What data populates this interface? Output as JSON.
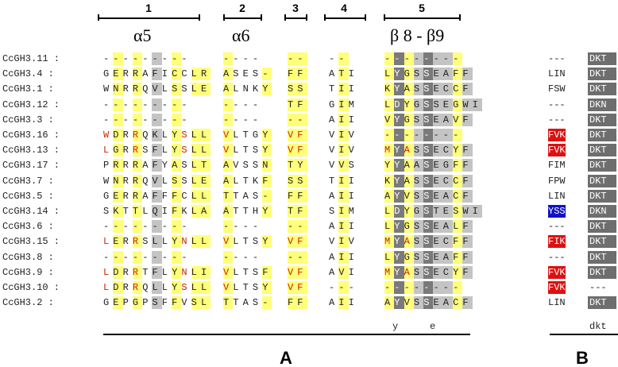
{
  "regions": [
    {
      "number": "1",
      "title": "α5"
    },
    {
      "number": "2",
      "title": "α6"
    },
    {
      "number": "3",
      "title": ""
    },
    {
      "number": "4",
      "title": ""
    },
    {
      "number": "5",
      "title": "β 8 - β9"
    }
  ],
  "panels": {
    "a": "A",
    "b": "B"
  },
  "consensus": [
    "y",
    "e",
    "dkt"
  ],
  "colors": {
    "yellow": "#ffff7a",
    "light_gray": "#c4c4c4",
    "dark_gray": "#7a7a7a",
    "red_text": "#cc2200",
    "red_box": "#dd1111",
    "blue_box": "#1010cc"
  },
  "rows": [
    {
      "name": "CcGH3.11 :",
      "s1": "---------",
      "s2": "----",
      "s3": "--",
      "s4": "--",
      "s5": "--------",
      "b": "---",
      "bstyle": "plain",
      "dkt": "DKT"
    },
    {
      "name": "CcGH3.4 :",
      "s1": "GERRAFICCLR",
      "s2": "ASES-",
      "s3": "FF",
      "s4": "ATI",
      "s5": "LYGSSEAFF",
      "b": "LIN",
      "bstyle": "plain",
      "dkt": "DKT"
    },
    {
      "name": "CcGH3.1 :",
      "s1": "WNRRQVLSSLE",
      "s2": "ALNKY",
      "s3": "SS",
      "s4": "TII",
      "s5": "KYASSECCF",
      "b": "FSW",
      "bstyle": "plain",
      "dkt": "DKT"
    },
    {
      "name": "CcGH3.12 :",
      "s1": "---------",
      "s2": "----",
      "s3": "TF",
      "s4": "GIM",
      "s5": "LDYGSSEGWI",
      "b": "---",
      "bstyle": "plain",
      "dkt": "DKN"
    },
    {
      "name": "CcGH3.3 :",
      "s1": "---------",
      "s2": "----",
      "s3": "--",
      "s4": "AII",
      "s5": "VYGSSEAVF",
      "b": "---",
      "bstyle": "plain",
      "dkt": "DKT"
    },
    {
      "name": "CcGH3.16 :",
      "s1": "WDRRQKLYSLL",
      "s2": "VLTGY",
      "s3": "VF",
      "s4": "VIV",
      "s5": "--------",
      "b": "FVK",
      "bstyle": "red",
      "dkt": "DKT"
    },
    {
      "name": "CcGH3.13 :",
      "s1": "LGRRSFLYSLL",
      "s2": "VLTSY",
      "s3": "VF",
      "s4": "VIV",
      "s5": "MYASSECYF",
      "b": "FVK",
      "bstyle": "red",
      "dkt": "DKT"
    },
    {
      "name": "CcGH3.17 :",
      "s1": "PRRRAFYASLT",
      "s2": "AVSSN",
      "s3": "TY",
      "s4": "VVS",
      "s5": "YYAASEGFF",
      "b": "FIM",
      "bstyle": "plain",
      "dkt": "DKT"
    },
    {
      "name": "CcGH3.7 :",
      "s1": "WNRRQVLSSLE",
      "s2": "ALTKF",
      "s3": "SS",
      "s4": "TII",
      "s5": "KYASSECCF",
      "b": "FPW",
      "bstyle": "plain",
      "dkt": "DKT"
    },
    {
      "name": "CcGH3.5 :",
      "s1": "GERRAFFFCLL",
      "s2": "TTAS-",
      "s3": "FF",
      "s4": "AII",
      "s5": "AYVSSEACF",
      "b": "LIN",
      "bstyle": "plain",
      "dkt": "DKT"
    },
    {
      "name": "CcGH3.14 :",
      "s1": "SKTTLQIFKLA",
      "s2": "ATTHY",
      "s3": "TF",
      "s4": "SIM",
      "s5": "LDYGSTESWI",
      "b": "YSS",
      "bstyle": "blue",
      "dkt": "DKN"
    },
    {
      "name": "CcGH3.6 :",
      "s1": "---------",
      "s2": "----",
      "s3": "--",
      "s4": "AII",
      "s5": "LYGSSEALF",
      "b": "---",
      "bstyle": "plain",
      "dkt": "DKT"
    },
    {
      "name": "CcGH3.15 :",
      "s1": "LERRSLLYNLL",
      "s2": "VLTSY",
      "s3": "VF",
      "s4": "VIV",
      "s5": "MYASSECFF",
      "b": "FIK",
      "bstyle": "red",
      "dkt": "DKT"
    },
    {
      "name": "CcGH3.8 :",
      "s1": "---------",
      "s2": "----",
      "s3": "--",
      "s4": "AII",
      "s5": "LYGSSEAFF",
      "b": "---",
      "bstyle": "plain",
      "dkt": "DKT"
    },
    {
      "name": "CcGH3.9 :",
      "s1": "LDRRTFLYNLI",
      "s2": "VLTSF",
      "s3": "VF",
      "s4": "AVI",
      "s5": "MYASSECYF",
      "b": "FVK",
      "bstyle": "red",
      "dkt": "DKT"
    },
    {
      "name": "CcGH3.10 :",
      "s1": "LDRRQLLYSLL",
      "s2": "VLTSY",
      "s3": "VF",
      "s4": "---",
      "s5": "--------",
      "b": "FVK",
      "bstyle": "red",
      "dkt": "---"
    },
    {
      "name": "CcGH3.2 :",
      "s1": "GEPGPSFFVSL",
      "s2": "TTAS-",
      "s3": "FF",
      "s4": "AII",
      "s5": "AYVSSEACF",
      "b": "LIN",
      "bstyle": "plain",
      "dkt": "DKT"
    }
  ]
}
